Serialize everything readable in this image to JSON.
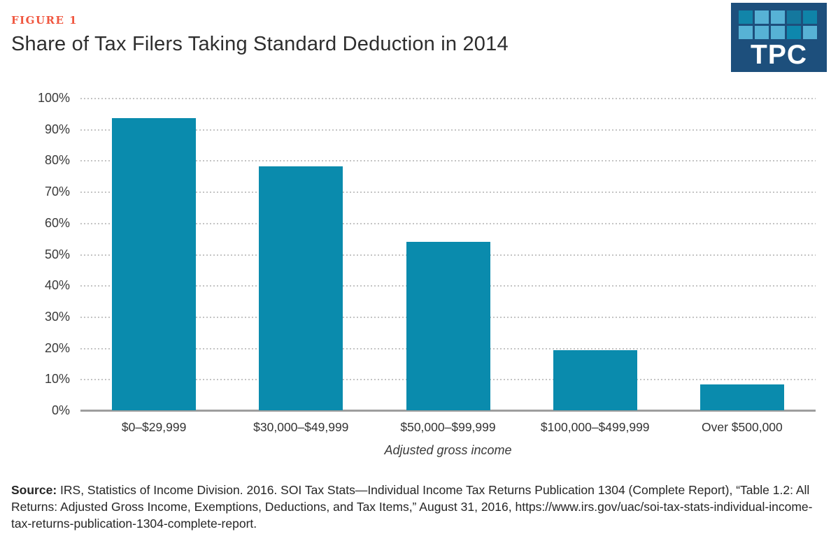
{
  "figure": {
    "label": "FIGURE 1",
    "label_color": "#f0563f"
  },
  "title": "Share of Tax Filers Taking Standard Deduction in 2014",
  "logo": {
    "text": "TPC",
    "background": "#1d4f7c",
    "square_colors": [
      "#1285a9",
      "#57b2d5",
      "#57b2d5",
      "#14789e",
      "#0f84a8",
      "#57b2d5",
      "#57b2d5",
      "#57b2d5",
      "#0e87ad",
      "#57b2d5"
    ]
  },
  "chart_data": {
    "type": "bar",
    "title": "Share of Tax Filers Taking Standard Deduction in 2014",
    "categories": [
      "$0–$29,999",
      "$30,000–$49,999",
      "$50,000–$99,999",
      "$100,000–$499,999",
      "Over $500,000"
    ],
    "values": [
      93.5,
      78,
      54,
      19.3,
      8.3
    ],
    "xlabel": "Adjusted gross income",
    "ylabel": "",
    "ylim": [
      0,
      100
    ],
    "ytick_step": 10,
    "ytick_suffix": "%",
    "grid": "horizontal-dotted",
    "legend": "none",
    "bar_color": "#0a8bad",
    "gridline_color": "#c4c4c4",
    "axis_line_color": "#9e9e9e"
  },
  "source": {
    "label": "Source:",
    "text": " IRS, Statistics of Income Division. 2016. SOI Tax Stats—Individual Income Tax Returns Publication 1304 (Complete Report), “Table 1.2: All Returns: Adjusted Gross Income, Exemptions, Deductions, and Tax Items,” August 31, 2016, https://www.irs.gov/uac/soi-tax-stats-individual-income-tax-returns-publication-1304-complete-report."
  }
}
